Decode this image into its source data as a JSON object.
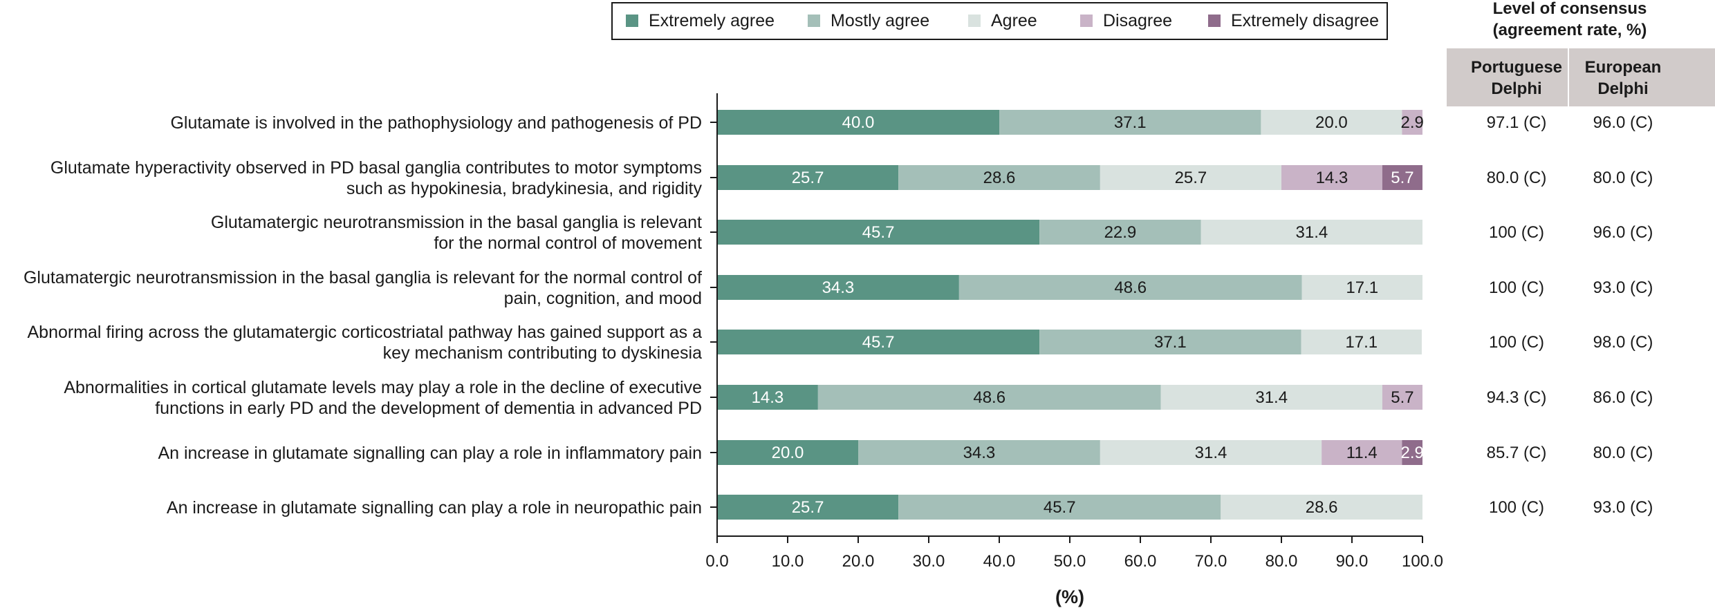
{
  "chart_data": {
    "type": "bar",
    "orientation": "horizontal",
    "stacked": true,
    "categories": [
      [
        "Glutamate is involved in the pathophysiology and pathogenesis of PD"
      ],
      [
        "Glutamate hyperactivity observed in PD basal ganglia contributes to motor symptoms",
        "such as hypokinesia, bradykinesia, and rigidity"
      ],
      [
        "Glutamatergic neurotransmission in the basal ganglia is relevant",
        "for the normal control of movement"
      ],
      [
        "Glutamatergic neurotransmission in the basal ganglia is relevant for the normal control of",
        "pain, cognition, and mood"
      ],
      [
        "Abnormal firing across the glutamatergic corticostriatal pathway has gained support as a",
        "key mechanism contributing to dyskinesia"
      ],
      [
        "Abnormalities in cortical glutamate levels may play a role in the decline of executive",
        "functions in early PD and the development of dementia in advanced PD"
      ],
      [
        "An increase in glutamate signalling can play a role in inflammatory pain"
      ],
      [
        "An increase in glutamate signalling can play a role in neuropathic pain"
      ]
    ],
    "series": [
      {
        "name": "Extremely agree",
        "color": "#5a9484",
        "label_color": "#ffffff",
        "values": [
          40.0,
          25.7,
          45.7,
          34.3,
          45.7,
          14.3,
          20.0,
          25.7
        ]
      },
      {
        "name": "Mostly agree",
        "color": "#a4bfb8",
        "label_color": "#1a1a1a",
        "values": [
          37.1,
          28.6,
          22.9,
          48.6,
          37.1,
          48.6,
          34.3,
          45.7
        ]
      },
      {
        "name": "Agree",
        "color": "#d9e2df",
        "label_color": "#1a1a1a",
        "values": [
          20.0,
          25.7,
          31.4,
          17.1,
          17.1,
          31.4,
          31.4,
          28.6
        ]
      },
      {
        "name": "Disagree",
        "color": "#c9b3c7",
        "label_color": "#1a1a1a",
        "values": [
          2.9,
          14.3,
          0,
          0,
          0,
          5.7,
          11.4,
          0
        ]
      },
      {
        "name": "Extremely disagree",
        "color": "#8f6c8b",
        "label_color": "#ffffff",
        "values": [
          0,
          5.7,
          0,
          0,
          0,
          0,
          2.9,
          0
        ]
      }
    ],
    "value_labels": [
      [
        "40.0",
        "37.1",
        "20.0",
        "2.9",
        ""
      ],
      [
        "25.7",
        "28.6",
        "25.7",
        "14.3",
        "5.7"
      ],
      [
        "45.7",
        "22.9",
        "31.4",
        "",
        ""
      ],
      [
        "34.3",
        "48.6",
        "17.1",
        "",
        ""
      ],
      [
        "45.7",
        "37.1",
        "17.1",
        "",
        ""
      ],
      [
        "14.3",
        "48.6",
        "31.4",
        "5.7",
        ""
      ],
      [
        "20.0",
        "34.3",
        "31.4",
        "11.4",
        "2.9"
      ],
      [
        "25.7",
        "45.7",
        "28.6",
        "",
        ""
      ]
    ],
    "xlim": [
      0,
      100
    ],
    "xticks": [
      "0.0",
      "10.0",
      "20.0",
      "30.0",
      "40.0",
      "50.0",
      "60.0",
      "70.0",
      "80.0",
      "90.0",
      "100.0"
    ],
    "xlabel": "(%)",
    "legend_position": "top",
    "grid": false
  },
  "consensus_table": {
    "title_lines": [
      "Level of consensus",
      "(agreement rate, %)"
    ],
    "header_color": "#d1cbca",
    "columns": [
      {
        "header_lines": [
          "Portuguese",
          "Delphi"
        ],
        "values": [
          "97.1 (C)",
          "80.0 (C)",
          "100 (C)",
          "100 (C)",
          "100 (C)",
          "94.3 (C)",
          "85.7 (C)",
          "100 (C)"
        ]
      },
      {
        "header_lines": [
          "European",
          "Delphi"
        ],
        "values": [
          "96.0 (C)",
          "80.0 (C)",
          "96.0 (C)",
          "93.0 (C)",
          "98.0 (C)",
          "86.0 (C)",
          "80.0 (C)",
          "93.0 (C)"
        ]
      }
    ]
  }
}
